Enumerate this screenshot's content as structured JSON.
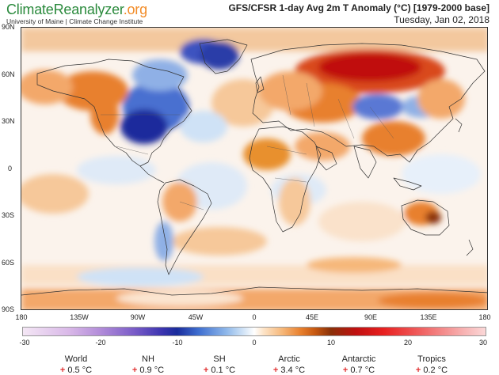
{
  "header": {
    "brand_climate": "Climate",
    "brand_reanalyzer": "Reanalyzer",
    "brand_org": ".org",
    "subtitle": "University of Maine | Climate Change Institute",
    "title": "GFS/CFSR 1-day Avg 2m T Anomaly (°C) [1979-2000 base]",
    "date": "Tuesday, Jan 02, 2018"
  },
  "map": {
    "lat_labels": [
      "90N",
      "60N",
      "30N",
      "0",
      "30S",
      "60S",
      "90S"
    ],
    "lon_labels": [
      "180",
      "135W",
      "90W",
      "45W",
      "0",
      "45E",
      "90E",
      "135E",
      "180"
    ],
    "colors": {
      "strong_cold": "#1a2c9c",
      "cold": "#4a6fd0",
      "cool": "#cfe2f6",
      "neutral": "#ffffff",
      "warm": "#f6c89a",
      "hot": "#e8802e",
      "very_hot": "#c01010"
    }
  },
  "colorbar": {
    "ticks": [
      "-30",
      "-20",
      "-10",
      "0",
      "10",
      "20",
      "30"
    ]
  },
  "stats": [
    {
      "name": "World",
      "value": "0.5 °C"
    },
    {
      "name": "NH",
      "value": "0.9 °C"
    },
    {
      "name": "SH",
      "value": "0.1 °C"
    },
    {
      "name": "Arctic",
      "value": "3.4 °C"
    },
    {
      "name": "Antarctic",
      "value": "0.7 °C"
    },
    {
      "name": "Tropics",
      "value": "0.2 °C"
    }
  ],
  "stat_sign": "+"
}
